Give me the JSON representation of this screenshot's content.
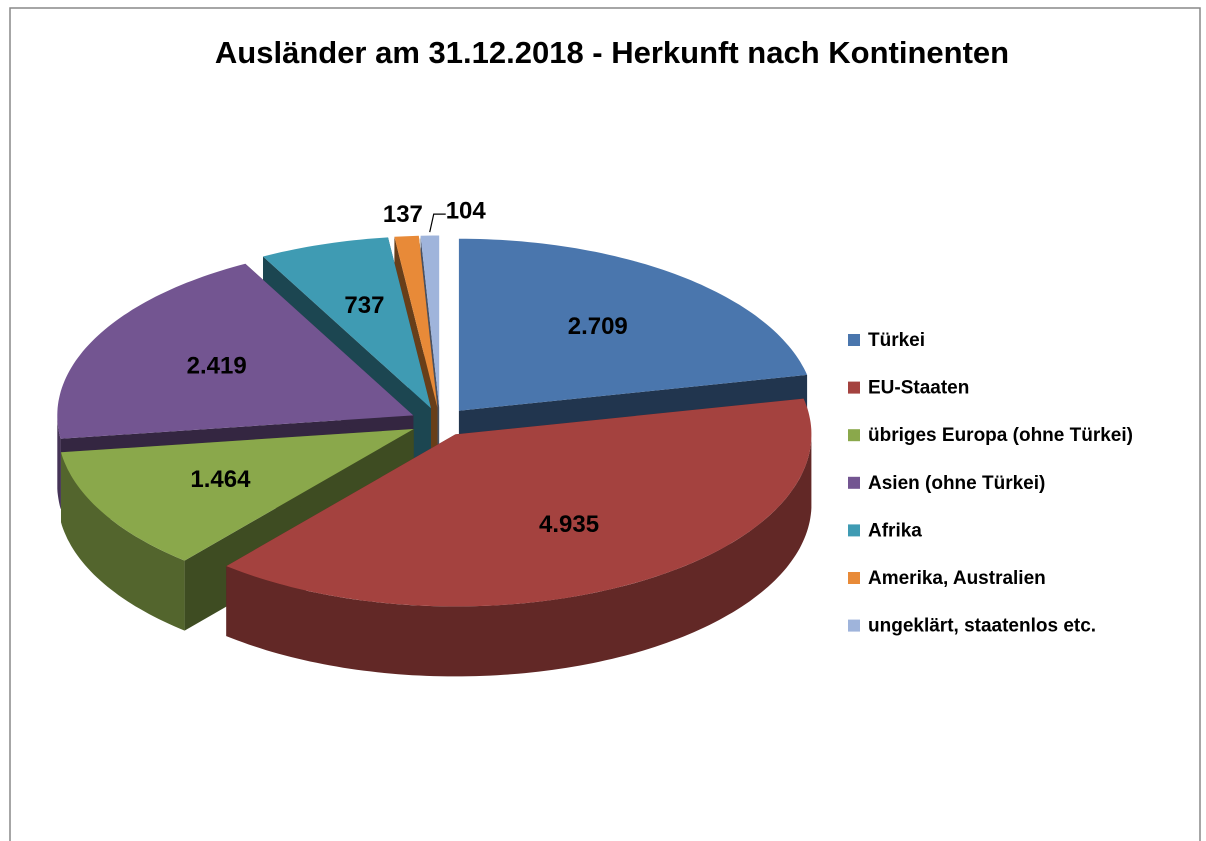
{
  "chart_data": {
    "type": "pie",
    "title": "Ausländer am 31.12.2018 - Herkunft nach Kontinenten",
    "categories": [
      "Türkei",
      "EU-Staaten",
      "übriges Europa (ohne Türkei)",
      "Asien (ohne Türkei)",
      "Afrika",
      "Amerika, Australien",
      "ungeklärt, staatenlos etc."
    ],
    "values": [
      2709,
      4935,
      1464,
      2419,
      737,
      137,
      104
    ],
    "value_labels": [
      "2.709",
      "4.935",
      "1.464",
      "2.419",
      "737",
      "137",
      "104"
    ],
    "colors": [
      "#4a76ad",
      "#a4423f",
      "#8aa84b",
      "#735591",
      "#3f9bb3",
      "#e88a38",
      "#9fb4db"
    ],
    "legend": "right"
  }
}
